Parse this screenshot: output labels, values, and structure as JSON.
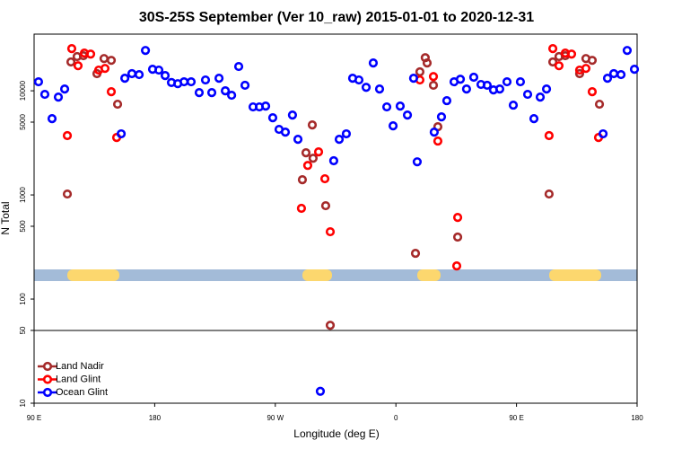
{
  "chart_data": {
    "type": "scatter",
    "log_y": true,
    "title": "30S-25S September (Ver 10_raw)   2015-01-01 to 2020-12-31",
    "x_label": "Longitude (deg E)",
    "y_label": "N Total",
    "xlim": [
      90,
      540
    ],
    "xticks": [
      {
        "value": 90,
        "label": "90 E"
      },
      180,
      {
        "value": 270,
        "label": "90 W"
      },
      {
        "value": 360,
        "label": "0"
      },
      {
        "value": 450,
        "label": "90 E"
      },
      {
        "value": 540,
        "label": "180"
      }
    ],
    "ylim": [
      10,
      35000
    ],
    "yticks": [
      10,
      50,
      100,
      500,
      1000,
      5000,
      10000
    ],
    "hline": 50,
    "legend": "bottom-left",
    "series": [
      {
        "name": "Land Nadir",
        "color": "#a52a2a",
        "x": [
          114.8,
          117.5,
          122.1,
          126.8,
          136.9,
          142.2,
          147.6,
          152.3,
          290.2,
          292.9,
          297.6,
          298.2,
          307.6,
          311.0,
          374.6,
          377.9,
          381.9,
          383.3,
          388.0,
          391.3,
          406.1,
          474.3,
          477.1,
          481.7,
          486.4,
          497.1,
          501.8,
          506.5,
          511.9
        ],
        "values": [
          1020,
          18900,
          21300,
          21700,
          14600,
          20400,
          19600,
          7430,
          1400,
          2540,
          4700,
          2250,
          788,
          56,
          275,
          15200,
          20800,
          18500,
          11300,
          4520,
          394,
          1020,
          18900,
          21300,
          21700,
          14600,
          20400,
          19600,
          7430
        ]
      },
      {
        "name": "Land Glint",
        "color": "#ff0000",
        "x": [
          114.8,
          118.1,
          122.8,
          127.5,
          132.2,
          138.2,
          142.9,
          147.6,
          151.6,
          289.5,
          294.2,
          302.3,
          307.0,
          311.0,
          377.9,
          388.0,
          391.3,
          406.1,
          405.4,
          474.3,
          477.1,
          481.7,
          486.4,
          491.1,
          497.1,
          501.8,
          506.5,
          511.2
        ],
        "values": [
          3710,
          25400,
          17400,
          23000,
          22500,
          15800,
          16400,
          9800,
          3560,
          743,
          1920,
          2590,
          1430,
          443,
          12700,
          13700,
          3290,
          608,
          208,
          3710,
          25400,
          17400,
          23000,
          22500,
          15800,
          16400,
          9800,
          3560
        ]
      },
      {
        "name": "Ocean Glint",
        "color": "#0000ff",
        "x": [
          93.3,
          98.0,
          103.4,
          108.1,
          112.8,
          155.0,
          157.7,
          163.0,
          168.4,
          173.1,
          178.4,
          183.1,
          187.8,
          192.5,
          197.2,
          201.9,
          207.2,
          213.2,
          217.9,
          222.6,
          228.0,
          232.7,
          237.4,
          242.7,
          247.4,
          253.4,
          258.1,
          262.8,
          268.1,
          272.8,
          277.5,
          282.8,
          286.9,
          303.6,
          313.6,
          317.7,
          323.0,
          327.7,
          332.4,
          337.8,
          343.1,
          347.8,
          353.2,
          357.9,
          363.2,
          368.6,
          373.2,
          375.9,
          388.6,
          394.0,
          398.0,
          403.4,
          408.1,
          412.7,
          418.1,
          423.5,
          428.1,
          432.8,
          437.5,
          442.9,
          447.6,
          452.9,
          458.3,
          463.0,
          467.7,
          472.4,
          514.6,
          517.9,
          522.6,
          528.0,
          532.6,
          538.0
        ],
        "values": [
          12200,
          9240,
          5400,
          8700,
          10400,
          3860,
          13200,
          14600,
          14300,
          24400,
          16100,
          15800,
          14000,
          12000,
          11700,
          12200,
          12200,
          9600,
          12700,
          9600,
          13200,
          10000,
          9060,
          17100,
          11300,
          7000,
          7000,
          7130,
          5510,
          4260,
          4010,
          5850,
          3420,
          13,
          2130,
          3420,
          3860,
          13200,
          12700,
          10800,
          18500,
          10400,
          7000,
          4610,
          7130,
          5850,
          13200,
          2080,
          4010,
          5620,
          8040,
          12200,
          12900,
          10400,
          13500,
          11500,
          11300,
          10200,
          10400,
          12200,
          7280,
          12200,
          9240,
          5400,
          8700,
          10400,
          3860,
          13200,
          14600,
          14300,
          24400,
          16100
        ]
      }
    ]
  }
}
